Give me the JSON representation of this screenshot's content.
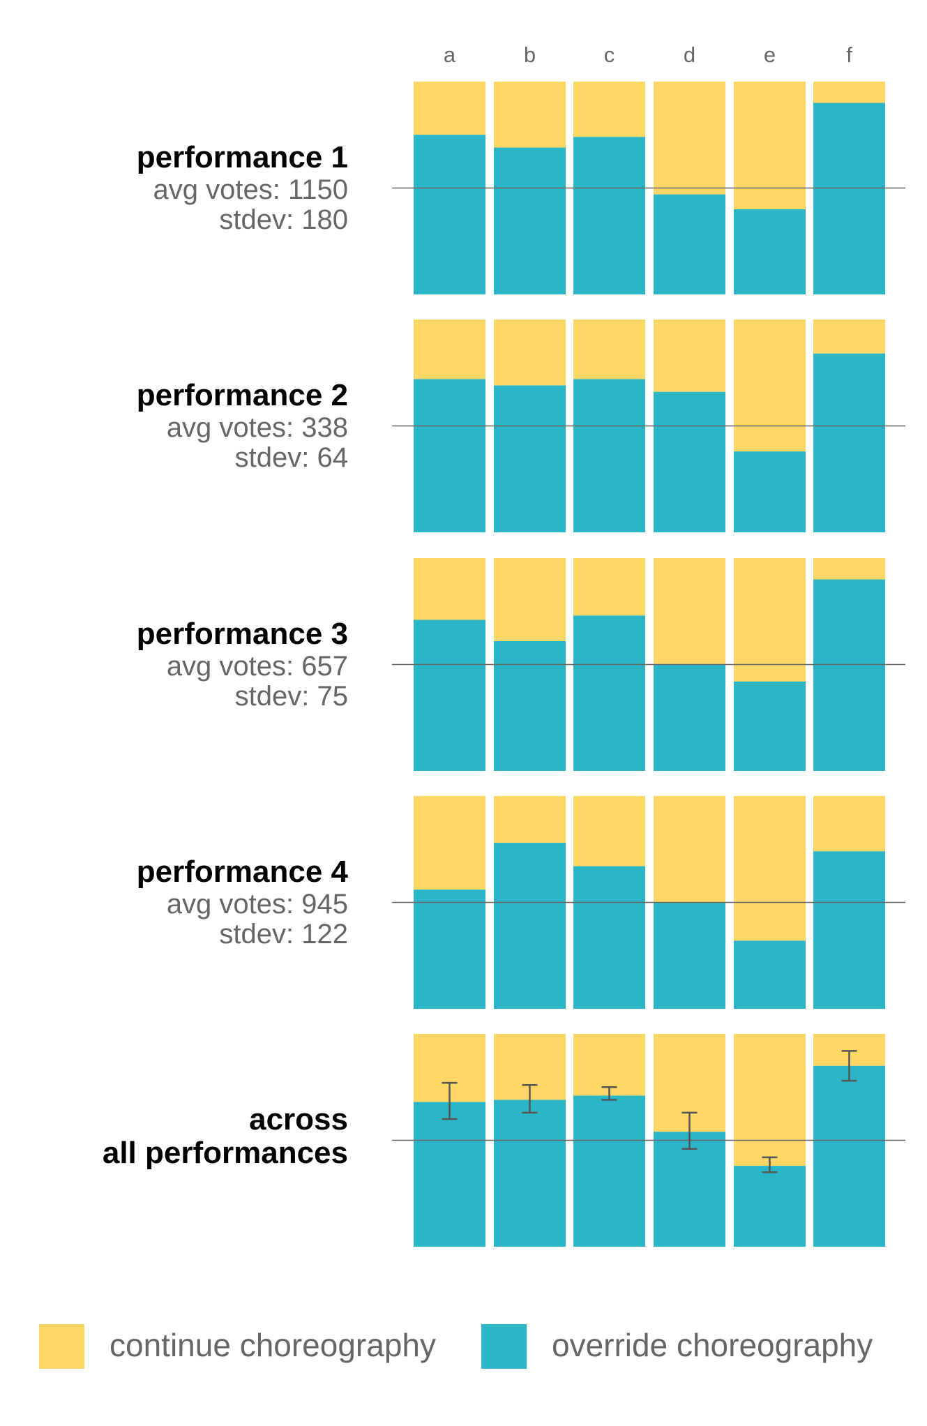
{
  "chart_data": {
    "type": "bar",
    "stacked": true,
    "normalized": true,
    "categories": [
      "a",
      "b",
      "c",
      "d",
      "e",
      "f"
    ],
    "colors": {
      "continue": "#FDD665",
      "override": "#2AB6C7",
      "reference_line": "#666666"
    },
    "legend": {
      "placement": "bottom",
      "items": [
        {
          "label": "continue choreography",
          "color": "#FDD665"
        },
        {
          "label": "override choreography",
          "color": "#2AB6C7"
        }
      ]
    },
    "reference_line_value": 0.5,
    "panels": [
      {
        "title": "performance 1",
        "avg_votes_label": "avg votes: 1150",
        "stdev_label": "stdev: 180",
        "override_share": [
          0.75,
          0.69,
          0.74,
          0.47,
          0.4,
          0.9
        ]
      },
      {
        "title": "performance 2",
        "avg_votes_label": "avg votes: 338",
        "stdev_label": "stdev: 64",
        "override_share": [
          0.72,
          0.69,
          0.72,
          0.66,
          0.38,
          0.84
        ]
      },
      {
        "title": "performance 3",
        "avg_votes_label": "avg votes: 657",
        "stdev_label": "stdev: 75",
        "override_share": [
          0.71,
          0.61,
          0.73,
          0.5,
          0.42,
          0.9
        ]
      },
      {
        "title": "performance 4",
        "avg_votes_label": "avg votes: 945",
        "stdev_label": "stdev: 122",
        "override_share": [
          0.56,
          0.78,
          0.67,
          0.5,
          0.32,
          0.74
        ]
      },
      {
        "title_lines": [
          "across",
          "all performances"
        ],
        "override_share": [
          0.68,
          0.69,
          0.71,
          0.54,
          0.38,
          0.85
        ],
        "error_low": [
          0.6,
          0.63,
          0.69,
          0.46,
          0.35,
          0.78
        ],
        "error_high": [
          0.77,
          0.76,
          0.75,
          0.63,
          0.42,
          0.92
        ]
      }
    ]
  }
}
